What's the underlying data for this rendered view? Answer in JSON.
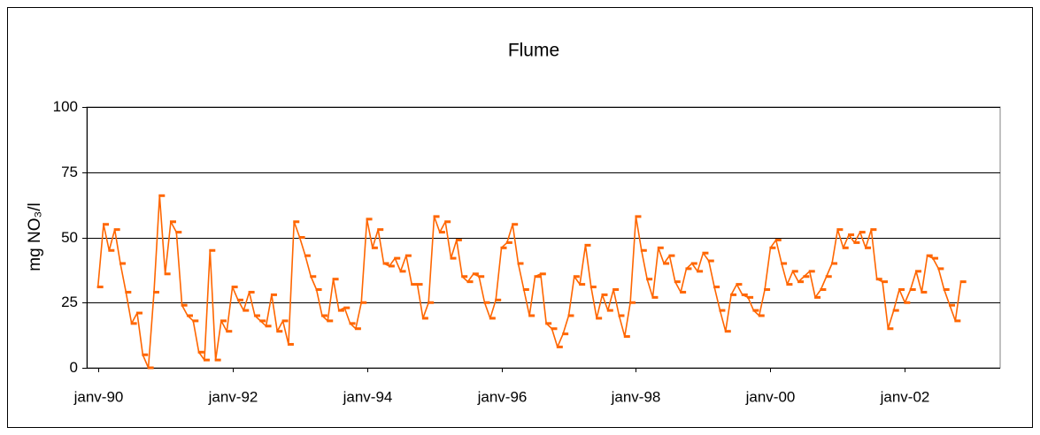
{
  "chart_data": {
    "type": "line",
    "title": "Flume",
    "y_label": "mg NO₃/l",
    "x": [
      "1990-01",
      "1990-02",
      "1990-03",
      "1990-04",
      "1990-05",
      "1990-06",
      "1990-07",
      "1990-08",
      "1990-09",
      "1990-10",
      "1990-11",
      "1990-12",
      "1991-01",
      "1991-02",
      "1991-03",
      "1991-04",
      "1991-05",
      "1991-06",
      "1991-07",
      "1991-08",
      "1991-09",
      "1991-10",
      "1991-11",
      "1991-12",
      "1992-01",
      "1992-02",
      "1992-03",
      "1992-04",
      "1992-05",
      "1992-06",
      "1992-07",
      "1992-08",
      "1992-09",
      "1992-10",
      "1992-11",
      "1992-12",
      "1993-01",
      "1993-02",
      "1993-03",
      "1993-04",
      "1993-05",
      "1993-06",
      "1993-07",
      "1993-08",
      "1993-09",
      "1993-10",
      "1993-11",
      "1993-12",
      "1994-01",
      "1994-02",
      "1994-03",
      "1994-04",
      "1994-05",
      "1994-06",
      "1994-07",
      "1994-08",
      "1994-09",
      "1994-10",
      "1994-11",
      "1994-12",
      "1995-01",
      "1995-02",
      "1995-03",
      "1995-04",
      "1995-05",
      "1995-06",
      "1995-07",
      "1995-08",
      "1995-09",
      "1995-10",
      "1995-11",
      "1995-12",
      "1996-01",
      "1996-02",
      "1996-03",
      "1996-04",
      "1996-05",
      "1996-06",
      "1996-07",
      "1996-08",
      "1996-09",
      "1996-10",
      "1996-11",
      "1996-12",
      "1997-01",
      "1997-02",
      "1997-03",
      "1997-04",
      "1997-05",
      "1997-06",
      "1997-07",
      "1997-08",
      "1997-09",
      "1997-10",
      "1997-11",
      "1997-12",
      "1998-01",
      "1998-02",
      "1998-03",
      "1998-04",
      "1998-05",
      "1998-06",
      "1998-07",
      "1998-08",
      "1998-09",
      "1998-10",
      "1998-11",
      "1998-12",
      "1999-01",
      "1999-02",
      "1999-03",
      "1999-04",
      "1999-05",
      "1999-06",
      "1999-07",
      "1999-08",
      "1999-09",
      "1999-10",
      "1999-11",
      "1999-12",
      "2000-01",
      "2000-02",
      "2000-03",
      "2000-04",
      "2000-05",
      "2000-06",
      "2000-07",
      "2000-08",
      "2000-09",
      "2000-10",
      "2000-11",
      "2000-12",
      "2001-01",
      "2001-02",
      "2001-03",
      "2001-04",
      "2001-05",
      "2001-06",
      "2001-07",
      "2001-08",
      "2001-09",
      "2001-10",
      "2001-11",
      "2001-12",
      "2002-01",
      "2002-02",
      "2002-03",
      "2002-04",
      "2002-05",
      "2002-06",
      "2002-07",
      "2002-08",
      "2002-09",
      "2002-10",
      "2002-11"
    ],
    "series": [
      {
        "color": "#ff6600",
        "values": [
          31,
          55,
          45,
          53,
          40,
          29,
          17,
          21,
          5,
          0,
          29,
          66,
          36,
          56,
          52,
          24,
          20,
          18,
          6,
          3,
          45,
          3,
          18,
          14,
          31,
          26,
          22,
          29,
          20,
          18,
          16,
          28,
          14,
          18,
          9,
          56,
          50,
          43,
          35,
          30,
          20,
          18,
          34,
          22,
          23,
          17,
          15,
          25,
          57,
          46,
          53,
          40,
          39,
          42,
          37,
          43,
          32,
          32,
          19,
          25,
          58,
          52,
          56,
          42,
          49,
          35,
          33,
          36,
          35,
          25,
          19,
          26,
          46,
          48,
          55,
          40,
          30,
          20,
          35,
          36,
          17,
          15,
          8,
          13,
          20,
          35,
          32,
          47,
          31,
          19,
          28,
          22,
          30,
          20,
          12,
          25,
          58,
          45,
          34,
          27,
          46,
          40,
          43,
          33,
          29,
          38,
          40,
          37,
          44,
          41,
          31,
          22,
          14,
          28,
          32,
          28,
          27,
          22,
          20,
          30,
          46,
          49,
          40,
          32,
          37,
          33,
          35,
          37,
          27,
          30,
          35,
          40,
          53,
          46,
          51,
          48,
          52,
          46,
          53,
          34,
          33,
          15,
          22,
          30,
          25,
          30,
          37,
          29,
          43,
          42,
          38,
          30,
          24,
          18,
          33
        ]
      }
    ],
    "xlim": [
      "1989-11",
      "2003-06"
    ],
    "xticks": [
      {
        "value": "1990-01",
        "label": "janv-90"
      },
      {
        "value": "1992-01",
        "label": "janv-92"
      },
      {
        "value": "1994-01",
        "label": "janv-94"
      },
      {
        "value": "1996-01",
        "label": "janv-96"
      },
      {
        "value": "1998-01",
        "label": "janv-98"
      },
      {
        "value": "2000-01",
        "label": "janv-00"
      },
      {
        "value": "2002-01",
        "label": "janv-02"
      }
    ],
    "ylim": [
      0,
      100
    ],
    "yticks": [
      0,
      25,
      50,
      75,
      100
    ],
    "grid": true
  }
}
